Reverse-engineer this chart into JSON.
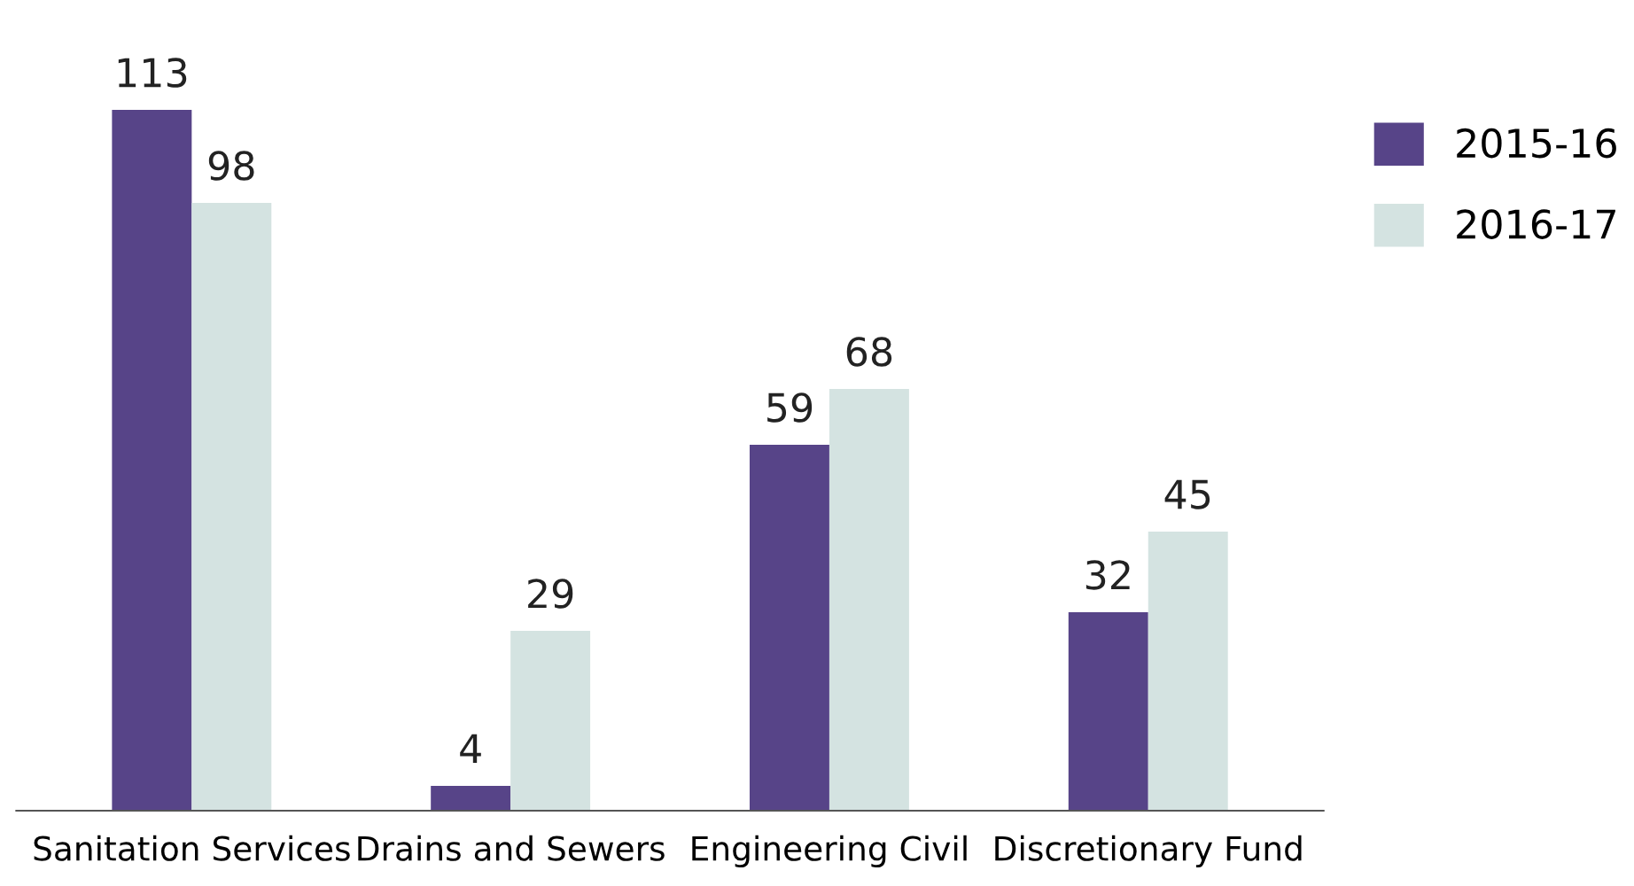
{
  "chart_data": {
    "type": "bar",
    "categories": [
      "Sanitation Services",
      "Drains and Sewers",
      "Engineering Civil",
      "Discretionary Fund"
    ],
    "series": [
      {
        "name": "2015-16",
        "color": "#574488",
        "values": [
          113,
          4,
          59,
          32
        ]
      },
      {
        "name": "2016-17",
        "color": "#d4e3e1",
        "values": [
          98,
          29,
          68,
          45
        ]
      }
    ],
    "data_labels": true,
    "legend": "top right",
    "grid": false
  }
}
